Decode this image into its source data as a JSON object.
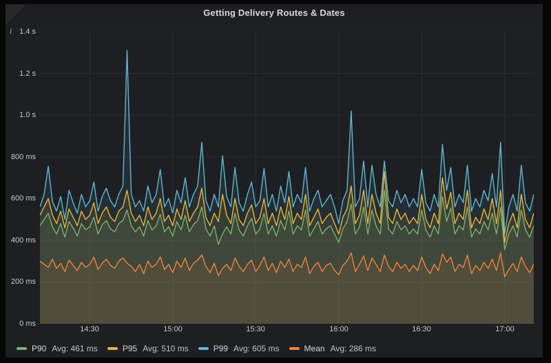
{
  "panel": {
    "title": "Getting Delivery Routes & Dates"
  },
  "icons": {
    "info": "i"
  },
  "colors": {
    "panel_bg": "#1e1f22",
    "frame_bg": "#070708",
    "grid": "#2c2d31",
    "axis_text": "#c7c8ca",
    "title_text": "#d8d9da"
  },
  "chart_data": {
    "type": "area",
    "title": "Getting Delivery Routes & Dates",
    "unit": "ms",
    "ylim": [
      0,
      1400
    ],
    "grid": true,
    "legend_position": "bottom",
    "y_ticks": [
      {
        "value": 0,
        "label": "0 ms"
      },
      {
        "value": 200,
        "label": "200 ms"
      },
      {
        "value": 400,
        "label": "400 ms"
      },
      {
        "value": 600,
        "label": "600 ms"
      },
      {
        "value": 800,
        "label": "800 ms"
      },
      {
        "value": 1000,
        "label": "1.0 s"
      },
      {
        "value": 1200,
        "label": "1.2 s"
      },
      {
        "value": 1400,
        "label": "1.4 s"
      }
    ],
    "x_ticks": [
      {
        "index": 12,
        "label": "14:30"
      },
      {
        "index": 32,
        "label": "15:00"
      },
      {
        "index": 52,
        "label": "15:30"
      },
      {
        "index": 72,
        "label": "16:00"
      },
      {
        "index": 92,
        "label": "16:30"
      },
      {
        "index": 112,
        "label": "17:00"
      }
    ],
    "fill_opacity": 0.1,
    "series": [
      {
        "name": "P90",
        "color": "#7EB26D",
        "avg_label": "Avg: 461 ms",
        "avg_ms": 461,
        "values": [
          470,
          500,
          530,
          465,
          430,
          480,
          415,
          490,
          460,
          420,
          480,
          450,
          465,
          510,
          430,
          475,
          495,
          455,
          440,
          480,
          495,
          545,
          470,
          440,
          465,
          420,
          495,
          450,
          470,
          525,
          440,
          465,
          420,
          490,
          450,
          520,
          440,
          475,
          495,
          560,
          455,
          420,
          470,
          380,
          430,
          465,
          430,
          530,
          450,
          420,
          470,
          505,
          430,
          455,
          530,
          430,
          470,
          420,
          495,
          450,
          540,
          430,
          470,
          450,
          545,
          420,
          455,
          490,
          430,
          455,
          470,
          430,
          390,
          455,
          490,
          575,
          430,
          465,
          560,
          430,
          545,
          470,
          430,
          640,
          455,
          430,
          490,
          450,
          470,
          430,
          455,
          430,
          545,
          450,
          415,
          470,
          430,
          610,
          490,
          555,
          430,
          470,
          450,
          560,
          415,
          455,
          430,
          490,
          450,
          530,
          430,
          560,
          355,
          430,
          470,
          415,
          545,
          450,
          415,
          470
        ]
      },
      {
        "name": "P95",
        "color": "#EAB839",
        "avg_label": "Avg: 510 ms",
        "avg_ms": 510,
        "values": [
          520,
          560,
          600,
          520,
          480,
          540,
          460,
          550,
          510,
          470,
          540,
          500,
          520,
          580,
          480,
          530,
          560,
          510,
          490,
          540,
          560,
          640,
          530,
          490,
          520,
          470,
          560,
          500,
          530,
          600,
          490,
          520,
          470,
          550,
          500,
          590,
          490,
          530,
          560,
          650,
          510,
          470,
          530,
          490,
          620,
          520,
          480,
          600,
          500,
          470,
          530,
          570,
          480,
          510,
          600,
          480,
          530,
          470,
          560,
          500,
          610,
          480,
          530,
          500,
          620,
          470,
          510,
          550,
          480,
          510,
          530,
          480,
          430,
          510,
          550,
          660,
          480,
          520,
          640,
          480,
          620,
          530,
          480,
          730,
          510,
          480,
          550,
          500,
          530,
          480,
          510,
          480,
          620,
          500,
          460,
          530,
          480,
          700,
          550,
          630,
          480,
          530,
          500,
          640,
          460,
          510,
          480,
          550,
          500,
          600,
          480,
          640,
          390,
          480,
          530,
          460,
          620,
          500,
          460,
          530
        ]
      },
      {
        "name": "P99",
        "color": "#5FB8D4",
        "avg_label": "Avg: 605 ms",
        "avg_ms": 605,
        "values": [
          560,
          620,
          755,
          585,
          540,
          610,
          500,
          640,
          580,
          530,
          620,
          560,
          590,
          680,
          540,
          610,
          650,
          590,
          560,
          620,
          660,
          1310,
          620,
          560,
          590,
          540,
          660,
          580,
          620,
          740,
          560,
          600,
          530,
          640,
          580,
          700,
          560,
          620,
          660,
          870,
          590,
          540,
          620,
          560,
          805,
          610,
          560,
          750,
          580,
          540,
          620,
          680,
          560,
          590,
          745,
          560,
          620,
          540,
          660,
          580,
          730,
          560,
          620,
          580,
          750,
          540,
          600,
          640,
          560,
          590,
          620,
          560,
          480,
          590,
          640,
          1020,
          560,
          600,
          780,
          560,
          760,
          620,
          560,
          780,
          590,
          560,
          640,
          580,
          620,
          560,
          600,
          560,
          740,
          580,
          540,
          620,
          560,
          860,
          640,
          750,
          560,
          620,
          580,
          760,
          540,
          600,
          560,
          640,
          590,
          720,
          560,
          870,
          430,
          560,
          620,
          540,
          760,
          580,
          540,
          620
        ]
      },
      {
        "name": "Mean",
        "color": "#EF843C",
        "avg_label": "Avg: 286 ms",
        "avg_ms": 286,
        "values": [
          300,
          285,
          270,
          310,
          265,
          290,
          250,
          305,
          280,
          255,
          295,
          270,
          285,
          320,
          260,
          290,
          310,
          280,
          265,
          300,
          315,
          290,
          275,
          250,
          285,
          240,
          300,
          270,
          285,
          320,
          260,
          285,
          245,
          300,
          270,
          315,
          255,
          290,
          305,
          330,
          275,
          245,
          290,
          230,
          265,
          285,
          255,
          315,
          275,
          250,
          285,
          305,
          250,
          280,
          320,
          255,
          290,
          245,
          300,
          270,
          310,
          250,
          285,
          270,
          320,
          240,
          275,
          295,
          250,
          280,
          290,
          255,
          235,
          280,
          300,
          340,
          250,
          285,
          325,
          255,
          315,
          285,
          250,
          330,
          275,
          250,
          295,
          265,
          285,
          250,
          280,
          255,
          320,
          270,
          240,
          285,
          255,
          335,
          295,
          320,
          250,
          285,
          270,
          330,
          240,
          280,
          255,
          295,
          265,
          310,
          255,
          340,
          225,
          260,
          290,
          250,
          320,
          275,
          245,
          285
        ]
      }
    ]
  }
}
